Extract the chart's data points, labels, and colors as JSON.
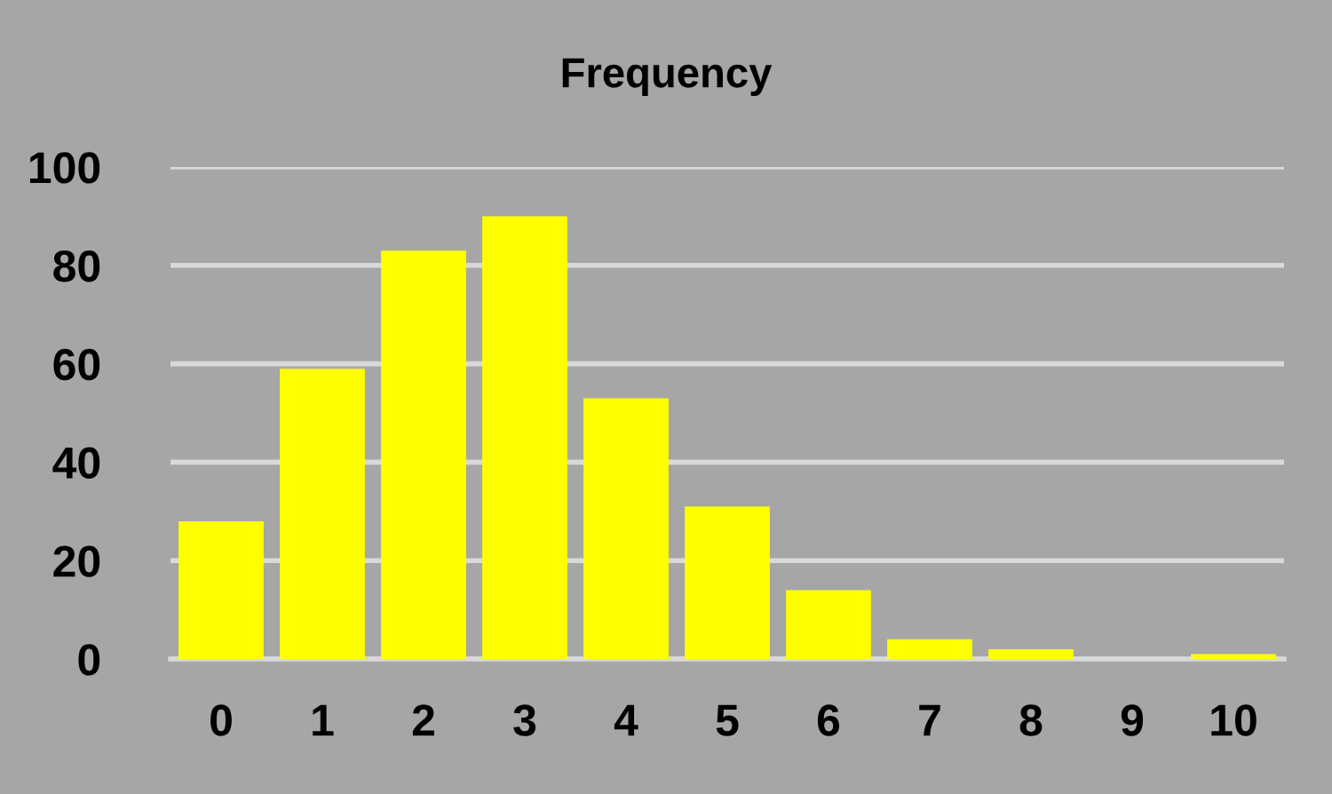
{
  "chart_data": {
    "type": "bar",
    "title": "Frequency",
    "categories": [
      "0",
      "1",
      "2",
      "3",
      "4",
      "5",
      "6",
      "7",
      "8",
      "9",
      "10"
    ],
    "values": [
      28,
      59,
      83,
      90,
      53,
      31,
      14,
      4,
      2,
      0,
      1
    ],
    "color": "#ffff00",
    "ylim": [
      0,
      100
    ],
    "yticks": [
      0,
      20,
      40,
      60,
      80,
      100
    ],
    "grid": "y"
  }
}
